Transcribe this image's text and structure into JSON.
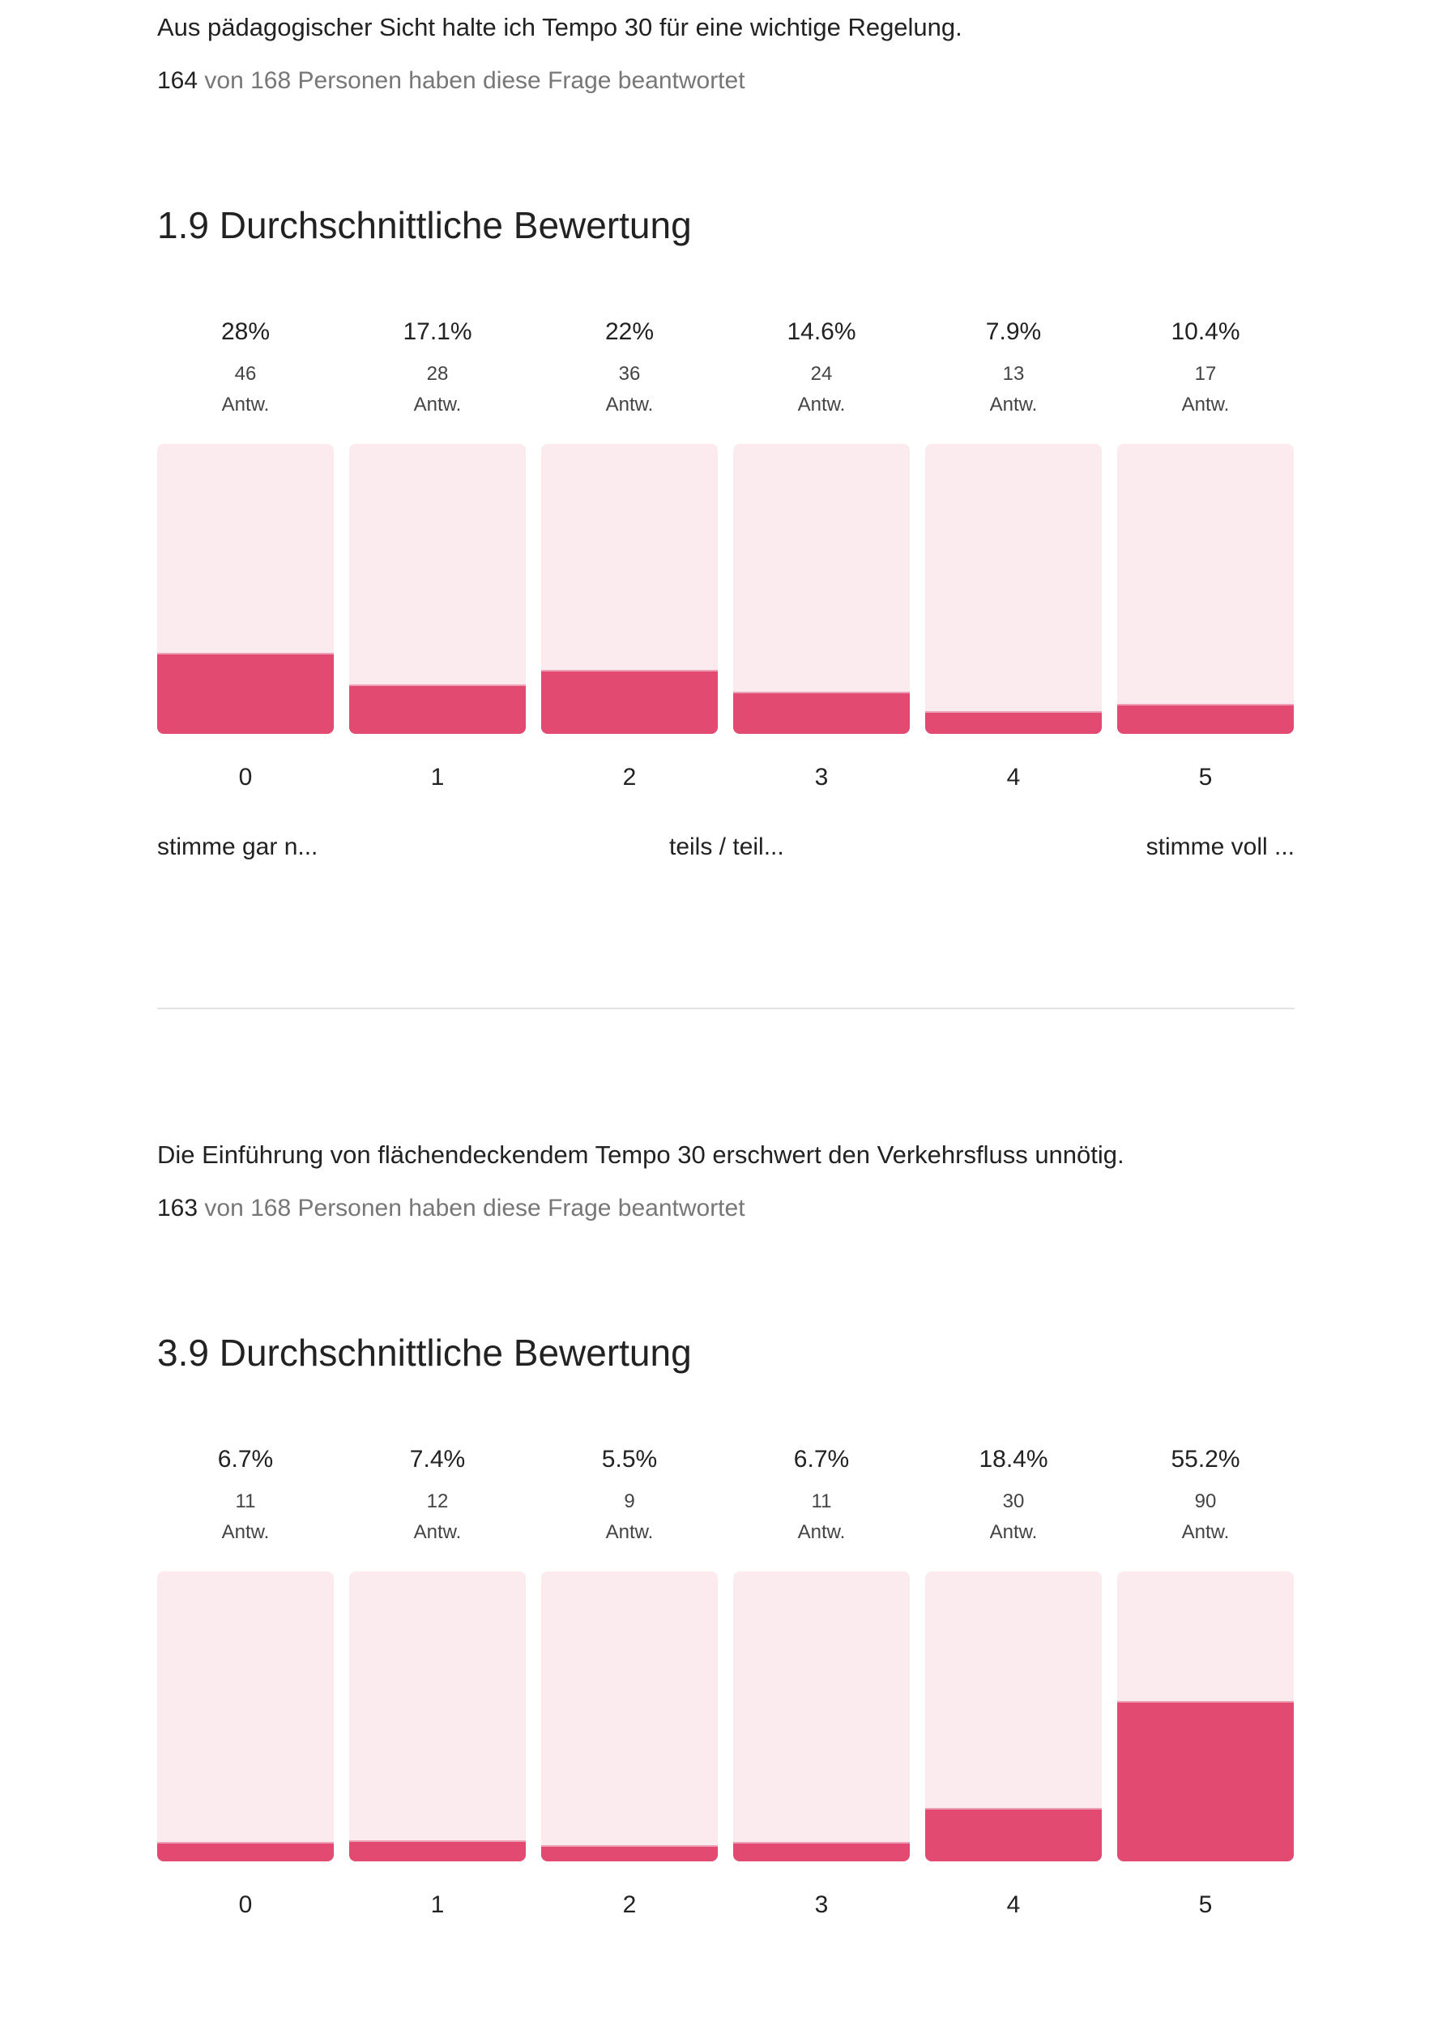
{
  "questions": [
    {
      "text": "Aus pädagogischer Sicht halte ich Tempo 30 für eine wichtige Regelung.",
      "answered_count": "164",
      "answered_rest": "von 168 Personen haben diese Frage beantwortet",
      "average_heading": "1.9 Durchschnittliche Bewertung",
      "scale_labels": {
        "low": "stimme gar n...",
        "mid": "teils / teil...",
        "high": "stimme voll ..."
      }
    },
    {
      "text": "Die Einführung von flächendeckendem Tempo 30 erschwert den Verkehrsfluss unnötig.",
      "answered_count": "163",
      "answered_rest": "von 168 Personen haben diese Frage beantwortet",
      "average_heading": "3.9 Durchschnittliche Bewertung"
    }
  ],
  "answers_unit": "Antw.",
  "colors": {
    "fill": "#e34a71",
    "track": "#fbeaee"
  },
  "chart_data": [
    {
      "type": "bar",
      "title": "1.9 Durchschnittliche Bewertung",
      "categories": [
        "0",
        "1",
        "2",
        "3",
        "4",
        "5"
      ],
      "percent_labels": [
        "28%",
        "17.1%",
        "22%",
        "14.6%",
        "7.9%",
        "10.4%"
      ],
      "percent": [
        28,
        17.1,
        22,
        14.6,
        7.9,
        10.4
      ],
      "counts": [
        "46",
        "28",
        "36",
        "24",
        "13",
        "17"
      ],
      "ylim": [
        0,
        100
      ]
    },
    {
      "type": "bar",
      "title": "3.9 Durchschnittliche Bewertung",
      "categories": [
        "0",
        "1",
        "2",
        "3",
        "4",
        "5"
      ],
      "percent_labels": [
        "6.7%",
        "7.4%",
        "5.5%",
        "6.7%",
        "18.4%",
        "55.2%"
      ],
      "percent": [
        6.7,
        7.4,
        5.5,
        6.7,
        18.4,
        55.2
      ],
      "counts": [
        "11",
        "12",
        "9",
        "11",
        "30",
        "90"
      ],
      "ylim": [
        0,
        100
      ]
    }
  ]
}
